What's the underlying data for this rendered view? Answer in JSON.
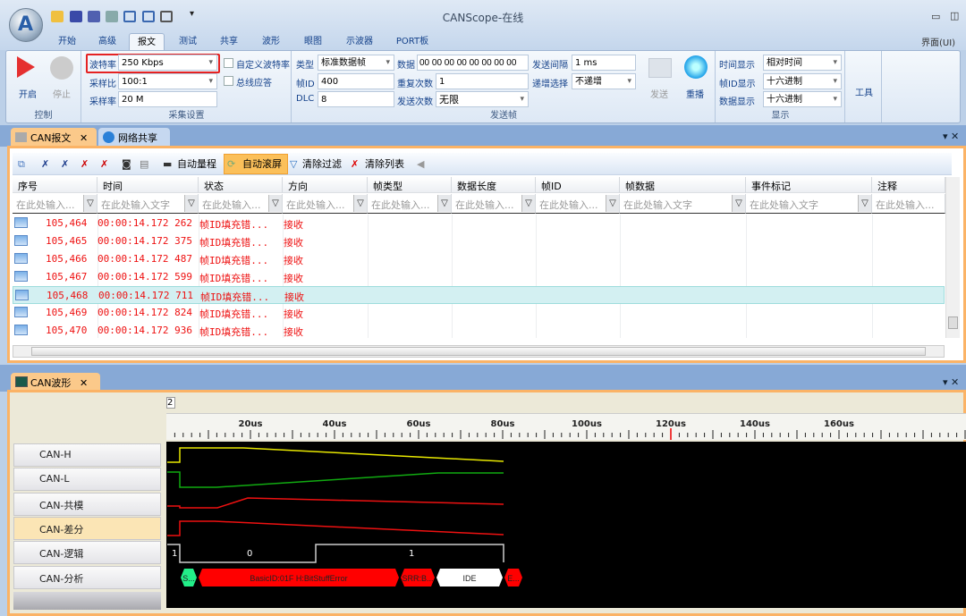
{
  "window": {
    "title": "CANScope-在线",
    "ui_menu": "界面(UI)"
  },
  "menu": {
    "tabs": [
      "开始",
      "高级",
      "报文",
      "测试",
      "共享",
      "波形",
      "眼图",
      "示波器",
      "PORT板"
    ],
    "active": "报文"
  },
  "ribbon": {
    "control": {
      "start": "开启",
      "stop": "停止",
      "label": "控制"
    },
    "capture": {
      "baud_label": "波特率",
      "baud": "250 Kbps",
      "ratio_label": "采样比",
      "ratio": "100:1",
      "rate_label": "采样率",
      "rate": "20 M",
      "custom_baud": "自定义波特率",
      "bus_ack": "总线应答",
      "label": "采集设置"
    },
    "send": {
      "type_label": "类型",
      "type": "标准数据帧",
      "id_label": "帧ID",
      "id": "400",
      "dlc_label": "DLC",
      "dlc": "8",
      "data_label": "数据",
      "data": "00 00 00 00 00 00 00 00",
      "repeat_label": "重复次数",
      "repeat": "1",
      "count_label": "发送次数",
      "count": "无限",
      "interval_label": "发送间隔",
      "interval": "1 ms",
      "inc_label": "递增选择",
      "inc": "不递增",
      "send_btn": "发送",
      "replay_btn": "重播",
      "label": "发送帧"
    },
    "display": {
      "time_label": "时间显示",
      "time": "相对时间",
      "id_label": "帧ID显示",
      "id": "十六进制",
      "data_label": "数据显示",
      "data": "十六进制",
      "label": "显示"
    },
    "tools": "工具"
  },
  "dock": {
    "tab1": "CAN报文",
    "tab2": "网络共享"
  },
  "toolbar": {
    "auto_range": "自动量程",
    "auto_scroll": "自动滚屏",
    "clear_filter": "清除过滤",
    "clear_list": "清除列表"
  },
  "table": {
    "columns": [
      "序号",
      "时间",
      "状态",
      "方向",
      "帧类型",
      "数据长度",
      "帧ID",
      "帧数据",
      "事件标记",
      "注释"
    ],
    "filters": [
      "在此处输入...",
      "在此处输入文字",
      "在此处输入...",
      "在此处输入...",
      "在此处输入...",
      "在此处输入...",
      "在此处输入...",
      "在此处输入文字",
      "在此处输入文字",
      "在此处输入..."
    ],
    "rows": [
      {
        "seq": "105,464",
        "time": "00:00:14.172 262",
        "status": "帧ID填充错...",
        "dir": "接收"
      },
      {
        "seq": "105,465",
        "time": "00:00:14.172 375",
        "status": "帧ID填充错...",
        "dir": "接收"
      },
      {
        "seq": "105,466",
        "time": "00:00:14.172 487",
        "status": "帧ID填充错...",
        "dir": "接收"
      },
      {
        "seq": "105,467",
        "time": "00:00:14.172 599",
        "status": "帧ID填充错...",
        "dir": "接收"
      },
      {
        "seq": "105,468",
        "time": "00:00:14.172 711",
        "status": "帧ID填充错...",
        "dir": "接收",
        "selected": true
      },
      {
        "seq": "105,469",
        "time": "00:00:14.172 824",
        "status": "帧ID填充错...",
        "dir": "接收"
      },
      {
        "seq": "105,470",
        "time": "00:00:14.172 936",
        "status": "帧ID填充错...",
        "dir": "接收"
      }
    ]
  },
  "wave": {
    "tab": "CAN波形",
    "marker": "2",
    "ticks": [
      "20us",
      "40us",
      "60us",
      "80us",
      "100us",
      "120us",
      "140us",
      "160us"
    ],
    "cursor_us": 120,
    "signals": [
      "CAN-H",
      "CAN-L",
      "CAN-共模",
      "CAN-差分",
      "CAN-逻辑",
      "CAN-分析"
    ],
    "selected_signal": "CAN-差分",
    "logic_labels": [
      "1",
      "0",
      "1"
    ],
    "decode": [
      {
        "text": "S...",
        "color": "#22ee88"
      },
      {
        "text": "BasicID:01F H:BitStuffError",
        "color": "#ff0000"
      },
      {
        "text": "SRR:B...",
        "color": "#ff0000"
      },
      {
        "text": "IDE",
        "color": "#ffffff"
      },
      {
        "text": "E...",
        "color": "#ff0000"
      }
    ],
    "colors": {
      "can_h": "#e8e800",
      "can_l": "#11aa11",
      "common": "#ee1111",
      "diff": "#ee1111"
    }
  }
}
